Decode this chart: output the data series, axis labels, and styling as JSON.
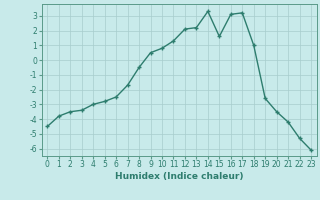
{
  "x": [
    0,
    1,
    2,
    3,
    4,
    5,
    6,
    7,
    8,
    9,
    10,
    11,
    12,
    13,
    14,
    15,
    16,
    17,
    18,
    19,
    20,
    21,
    22,
    23
  ],
  "y": [
    -4.5,
    -3.8,
    -3.5,
    -3.4,
    -3.0,
    -2.8,
    -2.5,
    -1.7,
    -0.5,
    0.5,
    0.8,
    1.3,
    2.1,
    2.2,
    3.3,
    1.6,
    3.1,
    3.2,
    1.0,
    -2.6,
    -3.5,
    -4.2,
    -5.3,
    -6.1
  ],
  "line_color": "#2e7d6e",
  "marker": "+",
  "marker_size": 3.5,
  "line_width": 1.0,
  "xlabel": "Humidex (Indice chaleur)",
  "xlabel_fontsize": 6.5,
  "xlabel_weight": "bold",
  "ylim": [
    -6.5,
    3.8
  ],
  "xlim": [
    -0.5,
    23.5
  ],
  "yticks": [
    -6,
    -5,
    -4,
    -3,
    -2,
    -1,
    0,
    1,
    2,
    3
  ],
  "xticks": [
    0,
    1,
    2,
    3,
    4,
    5,
    6,
    7,
    8,
    9,
    10,
    11,
    12,
    13,
    14,
    15,
    16,
    17,
    18,
    19,
    20,
    21,
    22,
    23
  ],
  "xtick_labels": [
    "0",
    "1",
    "2",
    "3",
    "4",
    "5",
    "6",
    "7",
    "8",
    "9",
    "10",
    "11",
    "12",
    "13",
    "14",
    "15",
    "16",
    "17",
    "18",
    "19",
    "20",
    "21",
    "22",
    "23"
  ],
  "bg_color": "#c8eaea",
  "grid_color": "#a8cdcd",
  "tick_fontsize": 5.5,
  "tick_color": "#2e7d6e",
  "spine_color": "#5a9a8a"
}
